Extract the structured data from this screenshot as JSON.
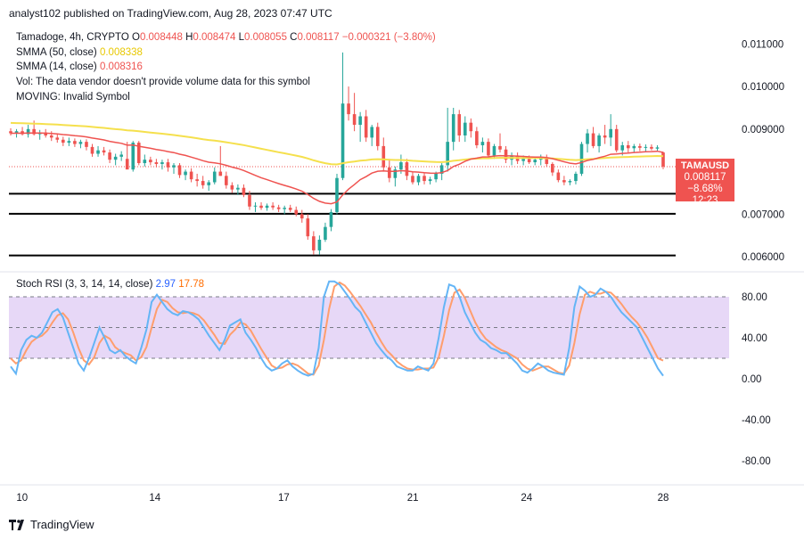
{
  "header": {
    "published_line": "analyst102 published on TradingView.com, Aug 28, 2023 07:47 UTC"
  },
  "legend": {
    "symbol_line": "Tamadoge, 4h, CRYPTO",
    "ohlc": {
      "o_label": "O",
      "o": "0.008448",
      "h_label": "H",
      "h": "0.008474",
      "l_label": "L",
      "l": "0.008055",
      "c_label": "C",
      "c": "0.008117",
      "change": "−0.000321 (−3.80%)"
    },
    "sma50_label": "SMMA (50, close)",
    "sma50_value": "0.008338",
    "sma14_label": "SMMA (14, close)",
    "sma14_value": "0.008316",
    "vol_line": "Vol: The data vendor doesn't provide volume data for this symbol",
    "moving_line": "MOVING: Invalid Symbol"
  },
  "price_tag": {
    "symbol": "TAMAUSD",
    "price": "0.008117",
    "change_pct": "−8.68%",
    "countdown": "12:23"
  },
  "stoch_legend": {
    "label": "Stoch RSI (3, 3, 14, 14, close)",
    "k_value": "2.97",
    "d_value": "17.78"
  },
  "footer": {
    "brand": "TradingView"
  },
  "colors": {
    "up": "#26a69a",
    "down": "#ef5350",
    "sma50": "#f5e04d",
    "sma14": "#ef5350",
    "stoch_k": "#64b5f6",
    "stoch_d": "#ff9e6d",
    "stoch_band": "#e7d8f7",
    "axis_text": "#131722"
  },
  "chart_data": [
    {
      "type": "candlestick",
      "price_axis": {
        "ticks": [
          "0.011000",
          "0.010000",
          "0.009000",
          "0.007000",
          "0.006000"
        ],
        "range": [
          0.00575,
          0.0113
        ]
      },
      "x_axis": {
        "tick_labels": [
          "10",
          "14",
          "17",
          "21",
          "24",
          "28"
        ]
      },
      "horizontal_levels": [
        0.00748,
        0.00701,
        0.00603
      ],
      "current_price": 0.008117,
      "moving_averages": [
        {
          "name": "SMMA (50, close)",
          "last": 0.008338
        },
        {
          "name": "SMMA (14, close)",
          "last": 0.008316
        }
      ],
      "candles_ohlc": [
        [
          0.00895,
          0.00902,
          0.00885,
          0.0089
        ],
        [
          0.0089,
          0.009,
          0.0088,
          0.00895
        ],
        [
          0.00895,
          0.00905,
          0.00885,
          0.00888
        ],
        [
          0.00888,
          0.0091,
          0.0088,
          0.009
        ],
        [
          0.009,
          0.0092,
          0.00885,
          0.00888
        ],
        [
          0.00888,
          0.00898,
          0.00875,
          0.00892
        ],
        [
          0.00892,
          0.009,
          0.0088,
          0.00885
        ],
        [
          0.00885,
          0.00895,
          0.00872,
          0.0088
        ],
        [
          0.0088,
          0.0089,
          0.00868,
          0.00875
        ],
        [
          0.00875,
          0.00882,
          0.0086,
          0.00868
        ],
        [
          0.00868,
          0.0088,
          0.0086,
          0.00872
        ],
        [
          0.00872,
          0.00878,
          0.00858,
          0.00865
        ],
        [
          0.00865,
          0.00875,
          0.00855,
          0.0087
        ],
        [
          0.0087,
          0.00876,
          0.0085,
          0.00858
        ],
        [
          0.00858,
          0.00865,
          0.00835,
          0.00842
        ],
        [
          0.00842,
          0.0086,
          0.00835,
          0.0085
        ],
        [
          0.0085,
          0.00858,
          0.00838,
          0.00845
        ],
        [
          0.00845,
          0.00852,
          0.0082,
          0.00828
        ],
        [
          0.00828,
          0.00842,
          0.00815,
          0.00835
        ],
        [
          0.00835,
          0.00848,
          0.00825,
          0.0084
        ],
        [
          0.0083,
          0.0087,
          0.0081,
          0.00805
        ],
        [
          0.00805,
          0.00872,
          0.008,
          0.00868
        ],
        [
          0.00868,
          0.00872,
          0.00815,
          0.0082
        ],
        [
          0.0082,
          0.0084,
          0.00812,
          0.00828
        ],
        [
          0.00828,
          0.00835,
          0.00815,
          0.00822
        ],
        [
          0.00822,
          0.0083,
          0.0081,
          0.00818
        ],
        [
          0.00818,
          0.00828,
          0.00805,
          0.00822
        ],
        [
          0.00822,
          0.0083,
          0.008,
          0.0081
        ],
        [
          0.0081,
          0.0082,
          0.00795,
          0.00815
        ],
        [
          0.00815,
          0.0082,
          0.00785,
          0.00792
        ],
        [
          0.00792,
          0.00805,
          0.0078,
          0.008
        ],
        [
          0.008,
          0.00808,
          0.00775,
          0.00782
        ],
        [
          0.00782,
          0.00795,
          0.00765,
          0.00778
        ],
        [
          0.00778,
          0.0079,
          0.0076,
          0.00768
        ],
        [
          0.00768,
          0.0078,
          0.00755,
          0.00775
        ],
        [
          0.00775,
          0.0081,
          0.0077,
          0.008
        ],
        [
          0.008,
          0.0086,
          0.0079,
          0.0079
        ],
        [
          0.0079,
          0.008,
          0.0076,
          0.00768
        ],
        [
          0.00768,
          0.00775,
          0.0075,
          0.00758
        ],
        [
          0.00758,
          0.0077,
          0.00745,
          0.00762
        ],
        [
          0.00762,
          0.0077,
          0.0074,
          0.00745
        ],
        [
          0.00745,
          0.00755,
          0.0071,
          0.00718
        ],
        [
          0.00718,
          0.00728,
          0.00705,
          0.0072
        ],
        [
          0.0072,
          0.00728,
          0.0071,
          0.00715
        ],
        [
          0.00715,
          0.00725,
          0.00708,
          0.0072
        ],
        [
          0.0072,
          0.00728,
          0.0071,
          0.00716
        ],
        [
          0.00716,
          0.00722,
          0.00705,
          0.00712
        ],
        [
          0.00712,
          0.0072,
          0.007,
          0.00715
        ],
        [
          0.00715,
          0.00722,
          0.00705,
          0.0071
        ],
        [
          0.0071,
          0.00718,
          0.00695,
          0.007
        ],
        [
          0.007,
          0.0071,
          0.0068,
          0.0069
        ],
        [
          0.0069,
          0.007,
          0.0064,
          0.00648
        ],
        [
          0.00648,
          0.0066,
          0.00605,
          0.00615
        ],
        [
          0.00615,
          0.0065,
          0.00605,
          0.0064
        ],
        [
          0.0064,
          0.0068,
          0.00635,
          0.0067
        ],
        [
          0.0067,
          0.00712,
          0.0066,
          0.00705
        ],
        [
          0.00705,
          0.00795,
          0.007,
          0.00785
        ],
        [
          0.00785,
          0.0108,
          0.0078,
          0.0096
        ],
        [
          0.0096,
          0.01,
          0.0092,
          0.00935
        ],
        [
          0.00935,
          0.00985,
          0.00895,
          0.0091
        ],
        [
          0.0091,
          0.0094,
          0.0087,
          0.0093
        ],
        [
          0.0093,
          0.00945,
          0.0087,
          0.0088
        ],
        [
          0.0088,
          0.0091,
          0.0086,
          0.00905
        ],
        [
          0.00905,
          0.00915,
          0.0085,
          0.0086
        ],
        [
          0.0086,
          0.0088,
          0.008,
          0.0081
        ],
        [
          0.0081,
          0.0083,
          0.00775,
          0.00785
        ],
        [
          0.00785,
          0.00812,
          0.00765,
          0.00805
        ],
        [
          0.00805,
          0.0084,
          0.00795,
          0.00822
        ],
        [
          0.00822,
          0.0083,
          0.0078,
          0.0079
        ],
        [
          0.0079,
          0.008,
          0.0077,
          0.00775
        ],
        [
          0.00775,
          0.00795,
          0.00768,
          0.0079
        ],
        [
          0.0079,
          0.00798,
          0.0077,
          0.00778
        ],
        [
          0.00778,
          0.00788,
          0.0077,
          0.00782
        ],
        [
          0.00782,
          0.008,
          0.00775,
          0.00795
        ],
        [
          0.00795,
          0.0082,
          0.0078,
          0.00815
        ],
        [
          0.00815,
          0.0095,
          0.008,
          0.0087
        ],
        [
          0.0087,
          0.0095,
          0.0085,
          0.00935
        ],
        [
          0.00935,
          0.00945,
          0.0087,
          0.00885
        ],
        [
          0.00885,
          0.0093,
          0.0087,
          0.00915
        ],
        [
          0.00915,
          0.00925,
          0.0088,
          0.00895
        ],
        [
          0.00895,
          0.00905,
          0.00855,
          0.00862
        ],
        [
          0.00862,
          0.0088,
          0.00845,
          0.0087
        ],
        [
          0.0087,
          0.00878,
          0.0083,
          0.00838
        ],
        [
          0.00838,
          0.00865,
          0.0083,
          0.0086
        ],
        [
          0.0086,
          0.0089,
          0.00845,
          0.00852
        ],
        [
          0.00852,
          0.0086,
          0.0082,
          0.00828
        ],
        [
          0.00828,
          0.00845,
          0.00815,
          0.00838
        ],
        [
          0.00838,
          0.00845,
          0.00818,
          0.00825
        ],
        [
          0.00825,
          0.00838,
          0.00815,
          0.0083
        ],
        [
          0.0083,
          0.00838,
          0.00818,
          0.00822
        ],
        [
          0.00822,
          0.00835,
          0.00815,
          0.00828
        ],
        [
          0.00828,
          0.0084,
          0.00815,
          0.00832
        ],
        [
          0.00832,
          0.0084,
          0.00812,
          0.00818
        ],
        [
          0.00818,
          0.00822,
          0.0079,
          0.00798
        ],
        [
          0.00798,
          0.00805,
          0.00775,
          0.0078
        ],
        [
          0.0078,
          0.0079,
          0.00768,
          0.00775
        ],
        [
          0.00775,
          0.00782,
          0.00768,
          0.00778
        ],
        [
          0.00778,
          0.008,
          0.0077,
          0.00795
        ],
        [
          0.00795,
          0.0087,
          0.0079,
          0.00865
        ],
        [
          0.00865,
          0.009,
          0.00845,
          0.0089
        ],
        [
          0.0089,
          0.00905,
          0.00855,
          0.0086
        ],
        [
          0.0086,
          0.0089,
          0.00845,
          0.00885
        ],
        [
          0.00885,
          0.0091,
          0.00865,
          0.0088
        ],
        [
          0.0088,
          0.00935,
          0.0086,
          0.009
        ],
        [
          0.009,
          0.0091,
          0.00845,
          0.0085
        ],
        [
          0.0085,
          0.0087,
          0.00838,
          0.00862
        ],
        [
          0.00862,
          0.00872,
          0.00845,
          0.00855
        ],
        [
          0.00855,
          0.00865,
          0.00845,
          0.0086
        ],
        [
          0.0086,
          0.00866,
          0.00848,
          0.00856
        ],
        [
          0.00856,
          0.00864,
          0.00846,
          0.00858
        ],
        [
          0.00858,
          0.00864,
          0.0085,
          0.00854
        ],
        [
          0.00854,
          0.00862,
          0.00848,
          0.00857
        ],
        [
          0.00845,
          0.00847,
          0.00806,
          0.00812
        ]
      ]
    },
    {
      "type": "line",
      "name": "Stoch RSI (3, 3, 14, 14, close)",
      "y_axis_ticks": [
        "80.00",
        "40.00",
        "0.00",
        "-40.00",
        "-80.00"
      ],
      "ylim": [
        -100,
        100
      ],
      "band": [
        20,
        80
      ],
      "midline": 50,
      "series": [
        {
          "name": "K",
          "values": [
            12,
            5,
            28,
            38,
            42,
            40,
            45,
            55,
            65,
            68,
            60,
            45,
            30,
            15,
            8,
            20,
            35,
            50,
            40,
            28,
            25,
            28,
            22,
            18,
            15,
            30,
            48,
            75,
            82,
            75,
            68,
            64,
            62,
            66,
            65,
            62,
            58,
            50,
            42,
            35,
            28,
            38,
            52,
            55,
            58,
            45,
            38,
            30,
            20,
            12,
            8,
            10,
            15,
            18,
            12,
            8,
            5,
            3,
            5,
            30,
            80,
            95,
            95,
            92,
            85,
            78,
            70,
            65,
            55,
            45,
            35,
            28,
            22,
            18,
            12,
            10,
            8,
            8,
            12,
            10,
            8,
            15,
            40,
            70,
            92,
            90,
            80,
            65,
            55,
            45,
            38,
            35,
            30,
            28,
            25,
            25,
            20,
            15,
            8,
            6,
            10,
            15,
            12,
            8,
            6,
            5,
            4,
            30,
            70,
            90,
            86,
            80,
            82,
            88,
            85,
            80,
            72,
            65,
            60,
            55,
            50,
            40,
            30,
            20,
            10,
            3
          ]
        },
        {
          "name": "D",
          "values": [
            20,
            15,
            18,
            28,
            36,
            40,
            42,
            47,
            55,
            62,
            64,
            58,
            45,
            30,
            18,
            14,
            21,
            35,
            42,
            39,
            31,
            27,
            25,
            23,
            18,
            21,
            31,
            50,
            68,
            77,
            75,
            69,
            65,
            64,
            65,
            64,
            62,
            57,
            50,
            43,
            35,
            34,
            43,
            48,
            55,
            53,
            47,
            38,
            29,
            21,
            13,
            10,
            11,
            14,
            15,
            13,
            9,
            5,
            4,
            13,
            38,
            68,
            90,
            94,
            91,
            85,
            78,
            71,
            63,
            55,
            45,
            36,
            28,
            23,
            17,
            13,
            10,
            9,
            9,
            10,
            10,
            11,
            21,
            42,
            67,
            84,
            87,
            79,
            67,
            55,
            46,
            39,
            35,
            31,
            28,
            26,
            23,
            20,
            14,
            10,
            8,
            10,
            12,
            12,
            9,
            6,
            5,
            13,
            35,
            63,
            82,
            85,
            83,
            83,
            85,
            84,
            79,
            73,
            66,
            60,
            55,
            48,
            40,
            30,
            20,
            17.78
          ]
        }
      ]
    }
  ]
}
